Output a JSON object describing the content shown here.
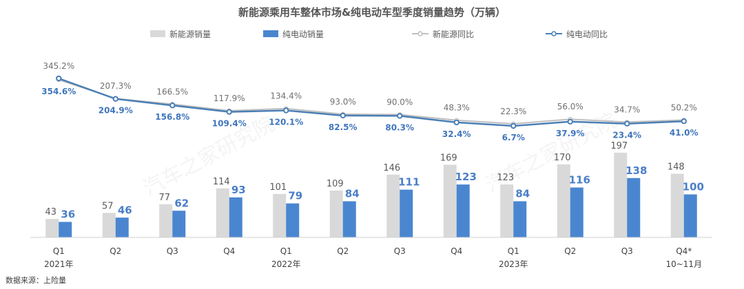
{
  "title": "新能源乘用车整体市场&纯电动车型季度销量趋势（万辆）",
  "source": "数据来源：上险量",
  "watermark": "汽车之家研究院",
  "colors": {
    "nev_bar": "#d9d9d9",
    "bev_bar": "#4a86d0",
    "nev_line": "#bfbfbf",
    "bev_line": "#4a7fb5"
  },
  "chart_data": {
    "type": "bar",
    "title": "新能源乘用车整体市场&纯电动车型季度销量趋势（万辆）",
    "categories": [
      "Q1",
      "Q2",
      "Q3",
      "Q4",
      "Q1",
      "Q2",
      "Q3",
      "Q4",
      "Q1",
      "Q2",
      "Q3",
      "Q4*"
    ],
    "year_labels": [
      {
        "index": 0,
        "text": "2021年"
      },
      {
        "index": 4,
        "text": "2022年"
      },
      {
        "index": 8,
        "text": "2023年"
      },
      {
        "index": 11,
        "text": "10~11月"
      }
    ],
    "series": [
      {
        "name": "新能源销量",
        "kind": "bar",
        "values": [
          43,
          57,
          77,
          114,
          101,
          109,
          146,
          169,
          123,
          170,
          197,
          148
        ]
      },
      {
        "name": "纯电动销量",
        "kind": "bar",
        "values": [
          36,
          46,
          62,
          93,
          79,
          84,
          111,
          123,
          84,
          116,
          138,
          100
        ]
      },
      {
        "name": "新能源同比",
        "kind": "line",
        "unit": "%",
        "values": [
          345.2,
          207.3,
          166.5,
          117.9,
          134.4,
          93.0,
          90.0,
          48.3,
          22.3,
          56.0,
          34.7,
          50.2
        ],
        "labels": [
          "345.2%",
          "207.3%",
          "166.5%",
          "117.9%",
          "134.4%",
          "93.0%",
          "90.0%",
          "48.3%",
          "22.3%",
          "56.0%",
          "34.7%",
          "50.2%"
        ]
      },
      {
        "name": "纯电动同比",
        "kind": "line",
        "unit": "%",
        "values": [
          354.6,
          204.9,
          156.8,
          109.4,
          120.1,
          82.5,
          80.3,
          32.4,
          6.7,
          37.9,
          23.4,
          41.0
        ],
        "labels": [
          "354.6%",
          "204.9%",
          "156.8%",
          "109.4%",
          "120.1%",
          "82.5%",
          "80.3%",
          "32.4%",
          "6.7%",
          "37.9%",
          "23.4%",
          "41.0%"
        ]
      }
    ],
    "legend": [
      "新能源销量",
      "纯电动销量",
      "新能源同比",
      "纯电动同比"
    ],
    "legend_position": "top",
    "grid": false
  }
}
